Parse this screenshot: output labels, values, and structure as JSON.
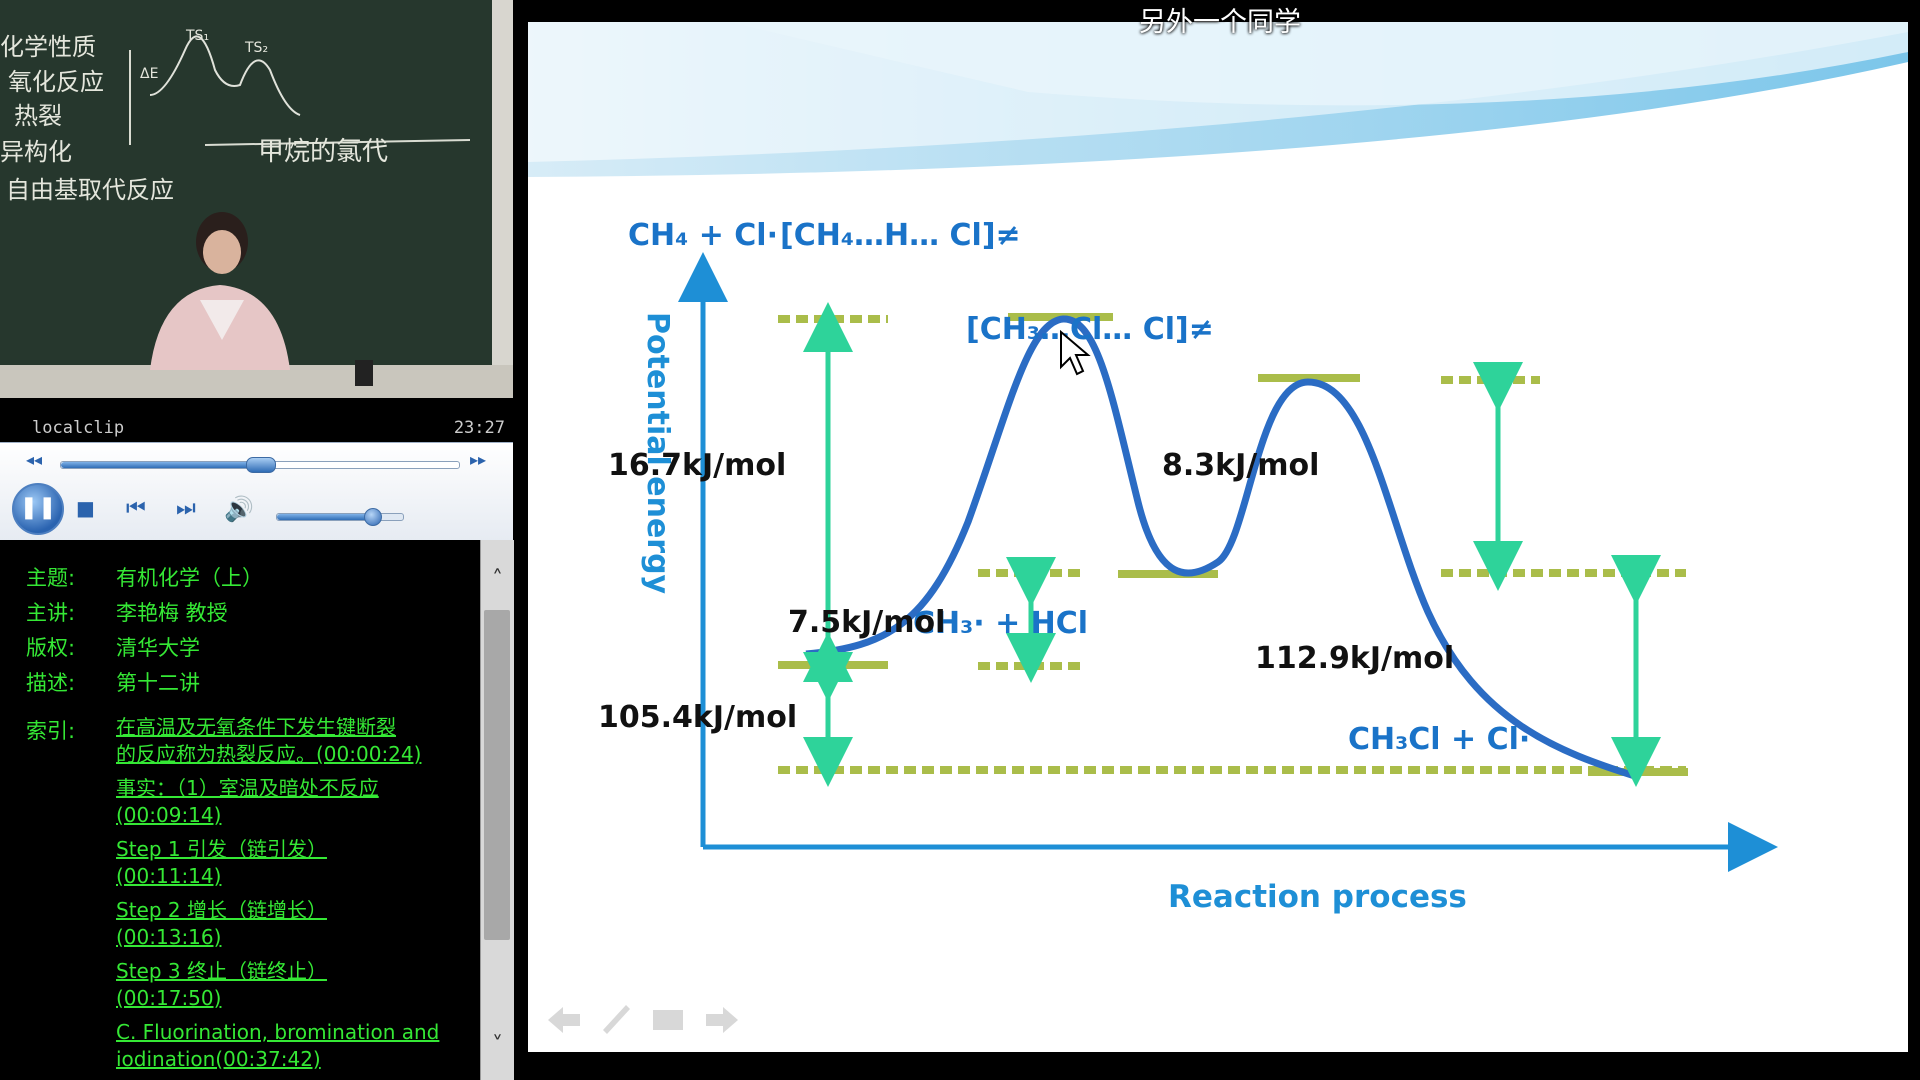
{
  "overlay_title": "另外一个同学",
  "player": {
    "clip_name": "localclip",
    "clip_time": "23:27",
    "seek_progress": 0.5,
    "volume_level": 0.75
  },
  "blackboard": {
    "lines": [
      "化学性质",
      "氧化反应",
      "热裂",
      "异构化",
      "自由基取代反应"
    ],
    "caption": "甲烷的氯代",
    "sketch_labels": [
      "TS₁",
      "TS₂",
      "ΔE"
    ]
  },
  "info": {
    "rows": [
      {
        "key": "主题:",
        "value": "有机化学（上）"
      },
      {
        "key": "主讲:",
        "value": "李艳梅 教授"
      },
      {
        "key": "版权:",
        "value": "清华大学"
      },
      {
        "key": "描述:",
        "value": "第十二讲"
      }
    ],
    "index_key": "索引:",
    "index_links": [
      {
        "line1": "在高温及无氧条件下发生键断裂",
        "line2": "的反应称为热裂反应。(00:00:24)"
      },
      {
        "line1": "事实：（1）室温及暗处不反应",
        "line2": "(00:09:14)"
      },
      {
        "line1": "Step 1 引发（链引发）",
        "line2": "(00:11:14)"
      },
      {
        "line1": "Step 2 增长（链增长）",
        "line2": "(00:13:16)"
      },
      {
        "line1": "Step 3 终止（链终止）",
        "line2": "(00:17:50)"
      },
      {
        "line1": "C. Fluorination, bromination and",
        "line2": "iodination(00:37:42)"
      }
    ]
  },
  "slide": {
    "y_axis_label": "Potential energy",
    "x_axis_label": "Reaction process",
    "species": {
      "reactants": "CH₄ + Cl·",
      "ts1": "[CH₄…H… Cl]≠",
      "ts2": "[CH₃…Cl… Cl]≠",
      "intermediate": "CH₃· + HCl",
      "products": "CH₃Cl + Cl·"
    },
    "energies": {
      "ea1": "16.7kJ/mol",
      "ea2": "8.3kJ/mol",
      "int_gap": "7.5kJ/mol",
      "reactant_gap": "105.4kJ/mol",
      "product_gap": "112.9kJ/mol"
    },
    "colors": {
      "curve": "#2b6cc4",
      "arrow": "#2ed39a",
      "level": "#aabd4a",
      "label_blue": "#1a73c8"
    }
  }
}
